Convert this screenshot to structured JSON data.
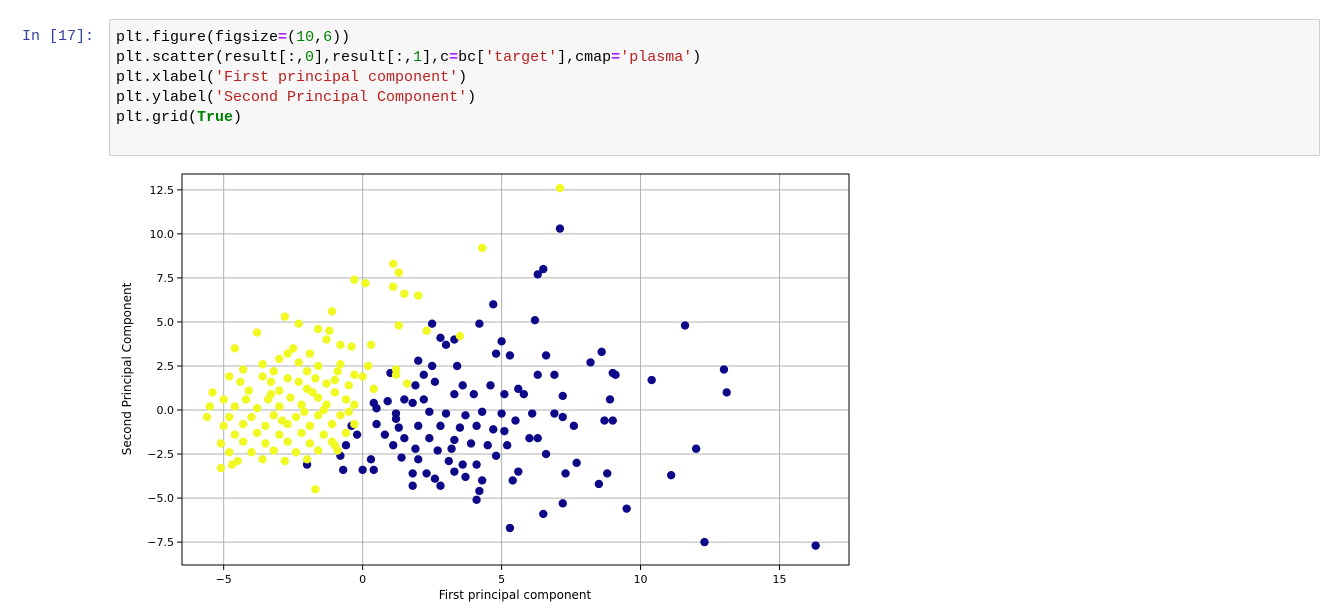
{
  "cell": {
    "prompt": "In [17]:",
    "code_lines": [
      [
        {
          "t": "plt.figure(figsize"
        },
        {
          "t": "=",
          "c": "op"
        },
        {
          "t": "("
        },
        {
          "t": "10",
          "c": "num"
        },
        {
          "t": ","
        },
        {
          "t": "6",
          "c": "num"
        },
        {
          "t": "))"
        }
      ],
      [
        {
          "t": "plt.scatter(result[:,"
        },
        {
          "t": "0",
          "c": "num"
        },
        {
          "t": "],result[:,"
        },
        {
          "t": "1",
          "c": "num"
        },
        {
          "t": "],c"
        },
        {
          "t": "=",
          "c": "op"
        },
        {
          "t": "bc["
        },
        {
          "t": "'target'",
          "c": "str"
        },
        {
          "t": "],cmap"
        },
        {
          "t": "=",
          "c": "op"
        },
        {
          "t": "'plasma'",
          "c": "str"
        },
        {
          "t": ")"
        }
      ],
      [
        {
          "t": "plt.xlabel("
        },
        {
          "t": "'First principal component'",
          "c": "str"
        },
        {
          "t": ")"
        }
      ],
      [
        {
          "t": "plt.ylabel("
        },
        {
          "t": "'Second Principal Component'",
          "c": "str"
        },
        {
          "t": ")"
        }
      ],
      [
        {
          "t": "plt.grid("
        },
        {
          "t": "True",
          "c": "kw"
        },
        {
          "t": ")"
        }
      ]
    ]
  },
  "chart_data": {
    "type": "scatter",
    "xlabel": "First principal component",
    "ylabel": "Second Principal Component",
    "xlim": [
      -6.5,
      17.5
    ],
    "ylim": [
      -8.8,
      13.4
    ],
    "xticks": [
      -5,
      0,
      5,
      10,
      15
    ],
    "xtick_labels": [
      "−5",
      "0",
      "5",
      "10",
      "15"
    ],
    "yticks": [
      -7.5,
      -5.0,
      -2.5,
      0.0,
      2.5,
      5.0,
      7.5,
      10.0,
      12.5
    ],
    "ytick_labels": [
      "−7.5",
      "−5.0",
      "−2.5",
      "0.0",
      "2.5",
      "5.0",
      "7.5",
      "10.0",
      "12.5"
    ],
    "grid": true,
    "colormap": "plasma",
    "colors": {
      "target_0": "#0d0887",
      "target_1": "#f0f921",
      "grid": "#b0b0b0"
    },
    "series": [
      {
        "points": [
          [
            7.1,
            10.3
          ],
          [
            6.5,
            8.0
          ],
          [
            6.3,
            7.7
          ],
          [
            4.7,
            6.0
          ],
          [
            6.2,
            5.1
          ],
          [
            11.6,
            4.8
          ],
          [
            4.2,
            4.9
          ],
          [
            2.5,
            4.9
          ],
          [
            2.8,
            4.1
          ],
          [
            3.3,
            4.0
          ],
          [
            3.0,
            3.7
          ],
          [
            5.0,
            3.9
          ],
          [
            4.8,
            3.2
          ],
          [
            5.3,
            3.1
          ],
          [
            6.6,
            3.1
          ],
          [
            8.6,
            3.3
          ],
          [
            8.2,
            2.7
          ],
          [
            13.0,
            2.3
          ],
          [
            13.1,
            1.0
          ],
          [
            9.1,
            2.0
          ],
          [
            9.0,
            2.1
          ],
          [
            10.4,
            1.7
          ],
          [
            2.0,
            2.8
          ],
          [
            2.5,
            2.5
          ],
          [
            3.4,
            2.5
          ],
          [
            2.2,
            2.0
          ],
          [
            1.9,
            1.4
          ],
          [
            2.6,
            1.6
          ],
          [
            3.6,
            1.4
          ],
          [
            4.6,
            1.4
          ],
          [
            5.6,
            1.2
          ],
          [
            6.9,
            2.0
          ],
          [
            6.3,
            2.0
          ],
          [
            7.2,
            0.8
          ],
          [
            5.1,
            0.9
          ],
          [
            5.8,
            0.9
          ],
          [
            8.9,
            0.6
          ],
          [
            4.0,
            0.9
          ],
          [
            3.3,
            0.9
          ],
          [
            2.2,
            0.6
          ],
          [
            1.8,
            0.4
          ],
          [
            1.5,
            0.6
          ],
          [
            0.9,
            0.5
          ],
          [
            0.5,
            0.1
          ],
          [
            0.4,
            0.4
          ],
          [
            1.2,
            -0.2
          ],
          [
            2.4,
            -0.1
          ],
          [
            3.0,
            -0.2
          ],
          [
            3.7,
            -0.3
          ],
          [
            4.3,
            -0.1
          ],
          [
            5.0,
            -0.2
          ],
          [
            5.5,
            -0.6
          ],
          [
            6.1,
            -0.2
          ],
          [
            6.9,
            -0.2
          ],
          [
            7.2,
            -0.4
          ],
          [
            8.7,
            -0.6
          ],
          [
            9.0,
            -0.6
          ],
          [
            0.5,
            -0.8
          ],
          [
            1.3,
            -1.0
          ],
          [
            2.0,
            -0.9
          ],
          [
            2.8,
            -0.9
          ],
          [
            3.5,
            -1.0
          ],
          [
            4.1,
            -0.9
          ],
          [
            4.7,
            -1.1
          ],
          [
            5.1,
            -1.2
          ],
          [
            6.3,
            -1.6
          ],
          [
            7.6,
            -0.9
          ],
          [
            0.8,
            -1.4
          ],
          [
            1.5,
            -1.6
          ],
          [
            2.4,
            -1.6
          ],
          [
            3.3,
            -1.7
          ],
          [
            3.9,
            -1.9
          ],
          [
            4.5,
            -2.0
          ],
          [
            5.2,
            -2.0
          ],
          [
            6.0,
            -1.6
          ],
          [
            1.1,
            -2.0
          ],
          [
            1.9,
            -2.2
          ],
          [
            2.7,
            -2.3
          ],
          [
            3.2,
            -2.2
          ],
          [
            4.8,
            -2.6
          ],
          [
            6.6,
            -2.5
          ],
          [
            -0.6,
            -2.0
          ],
          [
            1.4,
            -2.7
          ],
          [
            2.0,
            -2.8
          ],
          [
            3.1,
            -2.9
          ],
          [
            3.6,
            -3.1
          ],
          [
            4.1,
            -3.1
          ],
          [
            7.7,
            -3.0
          ],
          [
            12.0,
            -2.2
          ],
          [
            0.3,
            -2.8
          ],
          [
            0.0,
            -3.4
          ],
          [
            0.4,
            -3.4
          ],
          [
            -0.7,
            -3.4
          ],
          [
            1.8,
            -3.6
          ],
          [
            2.3,
            -3.6
          ],
          [
            3.3,
            -3.5
          ],
          [
            5.6,
            -3.5
          ],
          [
            7.3,
            -3.6
          ],
          [
            8.8,
            -3.6
          ],
          [
            -2.0,
            -3.1
          ],
          [
            2.6,
            -3.9
          ],
          [
            3.7,
            -3.8
          ],
          [
            4.3,
            -4.0
          ],
          [
            5.4,
            -4.0
          ],
          [
            8.5,
            -4.2
          ],
          [
            11.1,
            -3.7
          ],
          [
            1.8,
            -4.3
          ],
          [
            2.8,
            -4.3
          ],
          [
            4.2,
            -4.6
          ],
          [
            4.1,
            -5.1
          ],
          [
            7.2,
            -5.3
          ],
          [
            6.5,
            -5.9
          ],
          [
            9.5,
            -5.6
          ],
          [
            5.3,
            -6.7
          ],
          [
            12.3,
            -7.5
          ],
          [
            16.3,
            -7.7
          ],
          [
            -0.4,
            -0.9
          ],
          [
            -0.2,
            -1.4
          ],
          [
            -0.8,
            -2.6
          ],
          [
            1.0,
            2.1
          ],
          [
            1.2,
            -0.5
          ]
        ],
        "color": "#0d0887"
      },
      {
        "points": [
          [
            7.1,
            12.6
          ],
          [
            4.3,
            9.2
          ],
          [
            1.1,
            8.3
          ],
          [
            1.3,
            7.8
          ],
          [
            -0.3,
            7.4
          ],
          [
            0.1,
            7.2
          ],
          [
            1.1,
            7.0
          ],
          [
            1.5,
            6.6
          ],
          [
            2.0,
            6.5
          ],
          [
            -1.1,
            5.6
          ],
          [
            -2.8,
            5.3
          ],
          [
            -2.3,
            4.9
          ],
          [
            -1.6,
            4.6
          ],
          [
            -1.2,
            4.5
          ],
          [
            -3.8,
            4.4
          ],
          [
            -1.3,
            4.0
          ],
          [
            -0.8,
            3.7
          ],
          [
            -0.4,
            3.6
          ],
          [
            0.3,
            3.7
          ],
          [
            -2.5,
            3.5
          ],
          [
            -4.6,
            3.5
          ],
          [
            -2.7,
            3.2
          ],
          [
            -1.9,
            3.2
          ],
          [
            -3.0,
            2.9
          ],
          [
            -3.6,
            2.6
          ],
          [
            -2.3,
            2.7
          ],
          [
            -1.6,
            2.5
          ],
          [
            -0.8,
            2.6
          ],
          [
            0.2,
            2.5
          ],
          [
            1.2,
            2.3
          ],
          [
            -4.3,
            2.3
          ],
          [
            -3.2,
            2.2
          ],
          [
            -2.0,
            2.2
          ],
          [
            -0.9,
            2.2
          ],
          [
            -0.3,
            2.0
          ],
          [
            -4.8,
            1.9
          ],
          [
            -3.6,
            1.9
          ],
          [
            -2.7,
            1.8
          ],
          [
            -1.7,
            1.8
          ],
          [
            -1.0,
            1.7
          ],
          [
            0.0,
            1.9
          ],
          [
            -4.4,
            1.6
          ],
          [
            -3.3,
            1.6
          ],
          [
            -2.3,
            1.6
          ],
          [
            -1.3,
            1.5
          ],
          [
            -0.5,
            1.4
          ],
          [
            0.4,
            1.2
          ],
          [
            -5.4,
            1.0
          ],
          [
            -4.1,
            1.1
          ],
          [
            -3.0,
            1.1
          ],
          [
            -2.0,
            1.2
          ],
          [
            -1.0,
            1.0
          ],
          [
            -5.0,
            0.6
          ],
          [
            -4.2,
            0.6
          ],
          [
            -3.4,
            0.6
          ],
          [
            -2.6,
            0.7
          ],
          [
            -1.6,
            0.7
          ],
          [
            -0.6,
            0.6
          ],
          [
            -5.5,
            0.2
          ],
          [
            -4.6,
            0.2
          ],
          [
            -3.8,
            0.1
          ],
          [
            -3.0,
            0.2
          ],
          [
            -2.2,
            0.3
          ],
          [
            -1.3,
            0.3
          ],
          [
            -0.3,
            0.3
          ],
          [
            -5.6,
            -0.4
          ],
          [
            -4.8,
            -0.4
          ],
          [
            -4.0,
            -0.4
          ],
          [
            -3.2,
            -0.3
          ],
          [
            -2.4,
            -0.4
          ],
          [
            -1.6,
            -0.3
          ],
          [
            -0.8,
            -0.3
          ],
          [
            -5.0,
            -0.9
          ],
          [
            -4.3,
            -0.8
          ],
          [
            -3.5,
            -0.9
          ],
          [
            -2.7,
            -0.8
          ],
          [
            -1.9,
            -0.9
          ],
          [
            -1.1,
            -0.8
          ],
          [
            -0.3,
            -0.8
          ],
          [
            -4.6,
            -1.4
          ],
          [
            -3.8,
            -1.3
          ],
          [
            -3.0,
            -1.4
          ],
          [
            -2.2,
            -1.3
          ],
          [
            -1.4,
            -1.4
          ],
          [
            -0.6,
            -1.3
          ],
          [
            -5.1,
            -1.9
          ],
          [
            -4.3,
            -1.8
          ],
          [
            -3.5,
            -1.9
          ],
          [
            -2.7,
            -1.8
          ],
          [
            -1.9,
            -1.9
          ],
          [
            -1.1,
            -1.8
          ],
          [
            -4.8,
            -2.4
          ],
          [
            -4.0,
            -2.4
          ],
          [
            -3.2,
            -2.3
          ],
          [
            -2.4,
            -2.4
          ],
          [
            -1.6,
            -2.3
          ],
          [
            -0.9,
            -2.3
          ],
          [
            -4.5,
            -2.9
          ],
          [
            -3.6,
            -2.8
          ],
          [
            -2.8,
            -2.9
          ],
          [
            -2.0,
            -2.8
          ],
          [
            -5.1,
            -3.3
          ],
          [
            -4.7,
            -3.1
          ],
          [
            -1.7,
            -4.5
          ],
          [
            -1.0,
            -2.0
          ],
          [
            -3.3,
            0.9
          ],
          [
            -2.1,
            -0.1
          ],
          [
            -1.8,
            1.0
          ],
          [
            -2.9,
            -0.6
          ],
          [
            -1.4,
            0.0
          ],
          [
            -0.5,
            -0.1
          ],
          [
            3.5,
            4.2
          ],
          [
            2.3,
            4.5
          ],
          [
            1.3,
            4.8
          ],
          [
            1.2,
            2.0
          ],
          [
            1.6,
            1.5
          ]
        ],
        "color": "#f0f921"
      }
    ]
  }
}
